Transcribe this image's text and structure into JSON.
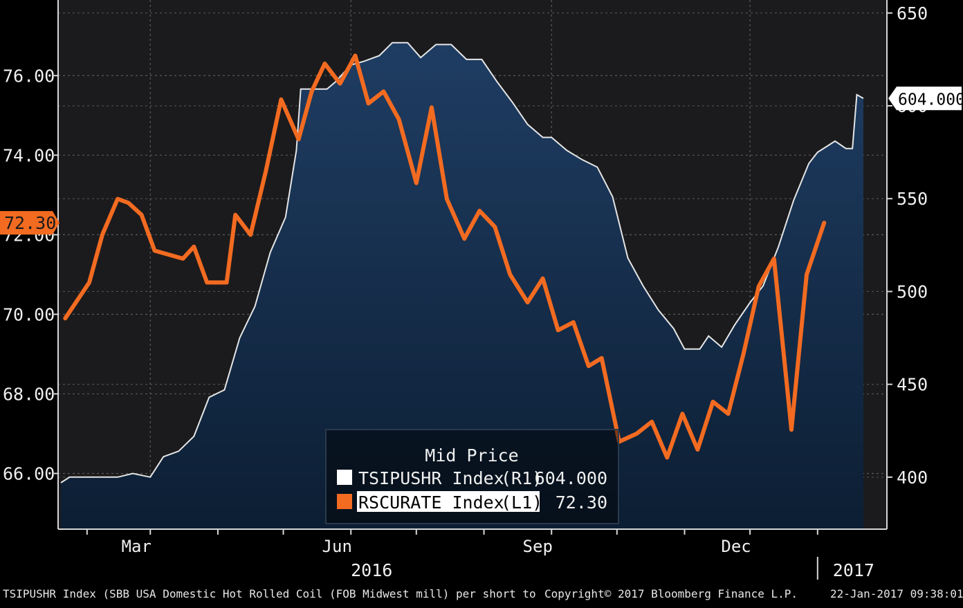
{
  "chart_data": {
    "type": "area",
    "x_unit": "date",
    "xlim": [
      "2016-01-20",
      "2017-01-22"
    ],
    "y_left": {
      "ylim": [
        64.6,
        77.9
      ],
      "ticks": [
        66,
        68,
        70,
        72,
        74,
        76
      ],
      "tick_labels": [
        "66.00",
        "68.00",
        "70.00",
        "72.00",
        "74.00",
        "76.00"
      ],
      "grid": true
    },
    "y_right": {
      "ylim": [
        372,
        657
      ],
      "ticks": [
        400,
        450,
        500,
        550,
        600,
        650
      ],
      "tick_labels": [
        "400",
        "450",
        "500",
        "550",
        "600",
        "650"
      ]
    },
    "x_month_ticks": [
      {
        "date": "2016-02-01",
        "label": ""
      },
      {
        "date": "2016-03-01",
        "label": "Mar"
      },
      {
        "date": "2016-04-01",
        "label": ""
      },
      {
        "date": "2016-05-01",
        "label": ""
      },
      {
        "date": "2016-06-01",
        "label": "Jun"
      },
      {
        "date": "2016-07-01",
        "label": ""
      },
      {
        "date": "2016-08-01",
        "label": ""
      },
      {
        "date": "2016-09-01",
        "label": "Sep"
      },
      {
        "date": "2016-10-01",
        "label": ""
      },
      {
        "date": "2016-11-01",
        "label": ""
      },
      {
        "date": "2016-12-01",
        "label": "Dec"
      },
      {
        "date": "2017-01-01",
        "label": ""
      }
    ],
    "x_year_labels": [
      {
        "date": "2016-06-01",
        "label": "2016"
      },
      {
        "date": "2017-01-08",
        "label": "2017"
      }
    ],
    "year_divider_date": "2017-01-01",
    "series": [
      {
        "name": "TSIPUSHR Index",
        "axis": "right",
        "style": "area",
        "last_value_label": "604.000",
        "points": [
          [
            "2016-01-20",
            397
          ],
          [
            "2016-01-24",
            400
          ],
          [
            "2016-02-15",
            400
          ],
          [
            "2016-02-22",
            402
          ],
          [
            "2016-03-01",
            400
          ],
          [
            "2016-03-07",
            411
          ],
          [
            "2016-03-14",
            414
          ],
          [
            "2016-03-21",
            422
          ],
          [
            "2016-03-28",
            443
          ],
          [
            "2016-04-04",
            447
          ],
          [
            "2016-04-11",
            475
          ],
          [
            "2016-04-18",
            492
          ],
          [
            "2016-04-25",
            521
          ],
          [
            "2016-05-02",
            540
          ],
          [
            "2016-05-07",
            576
          ],
          [
            "2016-05-09",
            609
          ],
          [
            "2016-05-21",
            609
          ],
          [
            "2016-05-25",
            613
          ],
          [
            "2016-06-01",
            622
          ],
          [
            "2016-06-07",
            624
          ],
          [
            "2016-06-14",
            627
          ],
          [
            "2016-06-20",
            634
          ],
          [
            "2016-06-27",
            634
          ],
          [
            "2016-07-03",
            626
          ],
          [
            "2016-07-10",
            633
          ],
          [
            "2016-07-17",
            633
          ],
          [
            "2016-07-24",
            625
          ],
          [
            "2016-07-31",
            625
          ],
          [
            "2016-08-07",
            613
          ],
          [
            "2016-08-14",
            602
          ],
          [
            "2016-08-21",
            590
          ],
          [
            "2016-08-28",
            583
          ],
          [
            "2016-09-01",
            583
          ],
          [
            "2016-09-08",
            576
          ],
          [
            "2016-09-15",
            571
          ],
          [
            "2016-09-22",
            567
          ],
          [
            "2016-09-29",
            551
          ],
          [
            "2016-10-06",
            518
          ],
          [
            "2016-10-13",
            503
          ],
          [
            "2016-10-20",
            490
          ],
          [
            "2016-10-27",
            480
          ],
          [
            "2016-11-01",
            469
          ],
          [
            "2016-11-08",
            469
          ],
          [
            "2016-11-12",
            476
          ],
          [
            "2016-11-18",
            470
          ],
          [
            "2016-11-24",
            482
          ],
          [
            "2016-12-01",
            494
          ],
          [
            "2016-12-07",
            503
          ],
          [
            "2016-12-14",
            524
          ],
          [
            "2016-12-21",
            549
          ],
          [
            "2016-12-28",
            569
          ],
          [
            "2017-01-01",
            575
          ],
          [
            "2017-01-05",
            578
          ],
          [
            "2017-01-09",
            581
          ],
          [
            "2017-01-14",
            577
          ],
          [
            "2017-01-17",
            577
          ],
          [
            "2017-01-19",
            606
          ],
          [
            "2017-01-22",
            604
          ]
        ]
      },
      {
        "name": "RSCURATE Index",
        "axis": "left",
        "style": "line",
        "last_value_label": "72.30",
        "points": [
          [
            "2016-01-22",
            69.9
          ],
          [
            "2016-02-02",
            70.8
          ],
          [
            "2016-02-08",
            72.0
          ],
          [
            "2016-02-15",
            72.9
          ],
          [
            "2016-02-20",
            72.8
          ],
          [
            "2016-02-26",
            72.5
          ],
          [
            "2016-03-03",
            71.6
          ],
          [
            "2016-03-16",
            71.4
          ],
          [
            "2016-03-21",
            71.7
          ],
          [
            "2016-03-27",
            70.8
          ],
          [
            "2016-04-05",
            70.8
          ],
          [
            "2016-04-09",
            72.5
          ],
          [
            "2016-04-16",
            72.0
          ],
          [
            "2016-04-23",
            73.6
          ],
          [
            "2016-04-30",
            75.4
          ],
          [
            "2016-05-08",
            74.4
          ],
          [
            "2016-05-14",
            75.6
          ],
          [
            "2016-05-20",
            76.3
          ],
          [
            "2016-05-27",
            75.8
          ],
          [
            "2016-06-03",
            76.5
          ],
          [
            "2016-06-09",
            75.3
          ],
          [
            "2016-06-16",
            75.6
          ],
          [
            "2016-06-23",
            74.9
          ],
          [
            "2016-07-01",
            73.3
          ],
          [
            "2016-07-08",
            75.2
          ],
          [
            "2016-07-15",
            72.9
          ],
          [
            "2016-07-23",
            71.9
          ],
          [
            "2016-07-30",
            72.6
          ],
          [
            "2016-08-06",
            72.2
          ],
          [
            "2016-08-13",
            71.0
          ],
          [
            "2016-08-21",
            70.3
          ],
          [
            "2016-08-28",
            70.9
          ],
          [
            "2016-09-04",
            69.6
          ],
          [
            "2016-09-11",
            69.8
          ],
          [
            "2016-09-18",
            68.7
          ],
          [
            "2016-09-24",
            68.9
          ],
          [
            "2016-10-02",
            66.8
          ],
          [
            "2016-10-10",
            67.0
          ],
          [
            "2016-10-17",
            67.3
          ],
          [
            "2016-10-24",
            66.4
          ],
          [
            "2016-10-31",
            67.5
          ],
          [
            "2016-11-07",
            66.6
          ],
          [
            "2016-11-14",
            67.8
          ],
          [
            "2016-11-21",
            67.5
          ],
          [
            "2016-11-28",
            69.0
          ],
          [
            "2016-12-05",
            70.7
          ],
          [
            "2016-12-12",
            71.4
          ],
          [
            "2016-12-20",
            67.1
          ],
          [
            "2016-12-27",
            71.0
          ],
          [
            "2017-01-04",
            72.3
          ]
        ]
      }
    ],
    "legend": {
      "placement": "bottom-center",
      "title": "Mid Price",
      "entries": [
        {
          "name": "TSIPUSHR Index",
          "axis_tag": "(R1)",
          "value": "604.000",
          "swatch": "#ffffff"
        },
        {
          "name": "RSCURATE Index",
          "axis_tag": "(L1)",
          "value": "72.30",
          "swatch": "#f26b21"
        }
      ]
    },
    "last_value_tags": {
      "left": {
        "value": 72.3,
        "label": "72.30"
      },
      "right": {
        "value": 604,
        "label": "604.000"
      }
    },
    "colors": {
      "background": "#000000",
      "plot_bg": "#1b1b1d",
      "area_fill_top": "#1f3d63",
      "area_fill_bottom": "#0c1e33",
      "area_line": "#e6e6e6",
      "line_color": "#f26b21",
      "axis_text": "#f0f0f0",
      "grid": "#5a5a5a"
    }
  },
  "footer": {
    "left": "TSIPUSHR Index (SBB USA Domestic Hot Rolled Coil (FOB Midwest mill) per short to",
    "center": "Copyright© 2017 Bloomberg Finance L.P.",
    "right": "22-Jan-2017 09:38:01"
  }
}
